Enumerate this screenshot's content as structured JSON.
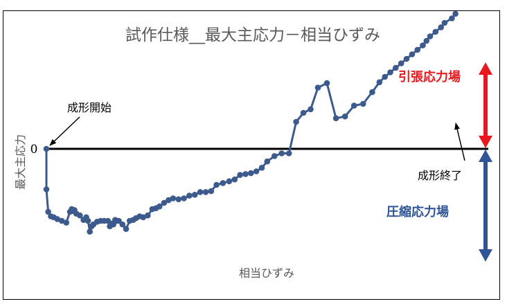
{
  "chart_data": {
    "type": "line",
    "title": "試作仕様__最大主応力－相当ひずみ",
    "xlabel": "相当ひずみ",
    "ylabel": "最大主応力",
    "zero_label": "0",
    "grid": false,
    "legend": "none",
    "axis_ticks": false,
    "series_color": "#3c5a8c",
    "annotations": {
      "start": "成形開始",
      "end": "成形終了",
      "tension": "引張応力場",
      "compression": "圧縮応力場",
      "tension_color": "#e8191e",
      "compression_color": "#2f5597"
    },
    "series": [
      {
        "x": [
          0,
          0,
          2,
          5,
          8,
          12,
          17,
          22,
          26,
          28,
          29,
          31,
          33,
          37,
          41,
          44,
          46,
          48,
          50,
          52,
          56,
          60,
          64,
          68,
          70,
          72,
          74,
          76,
          78,
          80,
          84,
          88,
          92,
          96,
          99,
          103,
          107,
          112,
          117,
          121,
          125,
          130,
          135,
          140,
          146,
          152,
          158,
          164,
          170,
          176,
          182,
          188,
          195,
          202,
          208,
          214,
          220,
          226,
          232,
          238,
          244,
          252,
          260,
          268,
          276,
          284,
          292,
          300,
          310,
          320,
          330,
          340,
          350,
          360,
          368,
          374,
          380,
          386,
          392,
          398,
          404,
          410,
          416,
          420,
          424,
          430,
          436,
          440,
          448,
          452
        ],
        "y": [
          0,
          -45,
          -70,
          -75,
          -76,
          -78,
          -80,
          -82,
          -70,
          -67,
          -69,
          -68,
          -72,
          -74,
          -79,
          -76,
          -80,
          -92,
          -86,
          -84,
          -81,
          -80,
          -80,
          -80,
          -86,
          -83,
          -84,
          -79,
          -80,
          -80,
          -84,
          -89,
          -80,
          -79,
          -77,
          -75,
          -76,
          -74,
          -67,
          -66,
          -64,
          -60,
          -57,
          -55,
          -56,
          -55,
          -52,
          -51,
          -48,
          -48,
          -47,
          -40,
          -38,
          -36,
          -34,
          -29,
          -28,
          -27,
          -25,
          -21,
          -14,
          -8,
          -5,
          -5,
          30,
          40,
          44,
          68,
          73,
          34,
          36,
          48,
          50,
          63,
          74,
          80,
          85,
          90,
          95,
          100,
          105,
          110,
          115,
          120,
          125,
          130,
          135,
          140,
          145,
          150
        ]
      }
    ]
  }
}
